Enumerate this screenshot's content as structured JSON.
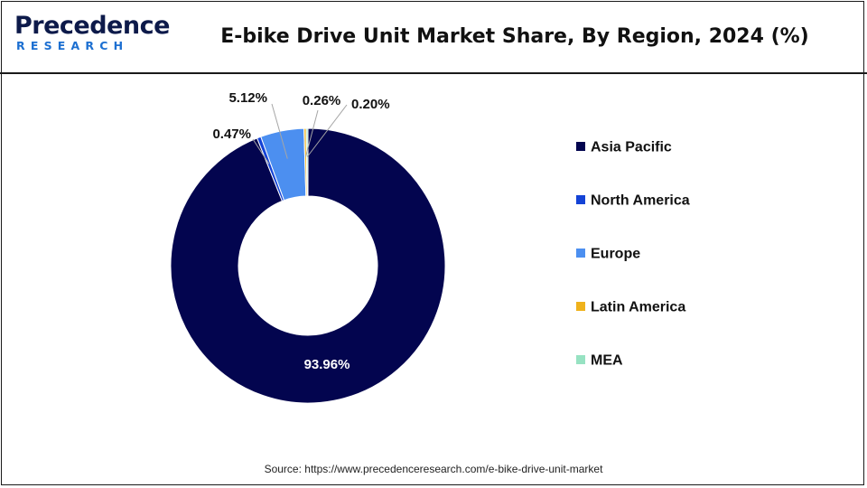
{
  "header": {
    "logo_word": "Precedence",
    "logo_sub": "RESEARCH",
    "title": "E-bike Drive Unit Market Share, By Region, 2024 (%)"
  },
  "colors": {
    "brand_dark": "#0d1a4a",
    "brand_blue": "#1c6fd1"
  },
  "chart_data": {
    "type": "pie",
    "subtype": "donut",
    "title": "E-bike Drive Unit Market Share, By Region, 2024 (%)",
    "categories": [
      "Asia Pacific",
      "North America",
      "Europe",
      "Latin America",
      "MEA"
    ],
    "values": [
      93.96,
      0.47,
      5.12,
      0.26,
      0.2
    ],
    "labels": [
      "93.96%",
      "0.47%",
      "5.12%",
      "0.26%",
      "0.20%"
    ],
    "colors": [
      "#03054f",
      "#1443d6",
      "#4c8ff0",
      "#efb21c",
      "#97e2c2"
    ],
    "legend_position": "right"
  },
  "source": "Source: https://www.precedenceresearch.com/e-bike-drive-unit-market"
}
